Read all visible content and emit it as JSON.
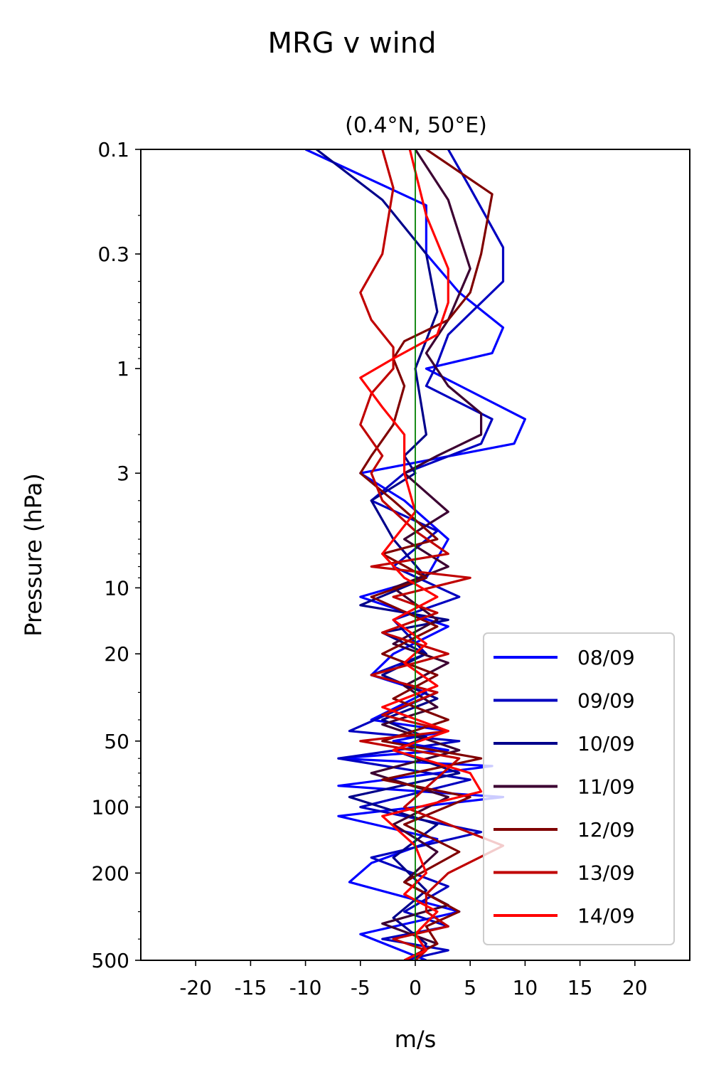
{
  "figure": {
    "suptitle": "MRG v wind",
    "subtitle": "(0.4°N, 50°E)"
  },
  "chart_data": {
    "type": "line",
    "title": "(0.4°N, 50°E)",
    "xlabel": "m/s",
    "ylabel": "Pressure (hPa)",
    "xlim": [
      -25,
      25
    ],
    "ylim": [
      500,
      0.1
    ],
    "yscale": "log",
    "x_ticks": [
      -20,
      -15,
      -10,
      -5,
      0,
      5,
      10,
      15,
      20
    ],
    "x_tick_labels": [
      "-20",
      "-15",
      "-10",
      "-5",
      "0",
      "5",
      "10",
      "15",
      "20"
    ],
    "y_ticks": [
      0.1,
      0.3,
      1,
      3,
      10,
      20,
      50,
      100,
      200,
      500
    ],
    "y_tick_labels": [
      "0.1",
      "0.3",
      "1",
      "3",
      "10",
      "20",
      "50",
      "100",
      "200",
      "500"
    ],
    "reference_line": {
      "x": 0,
      "color": "#008000"
    },
    "grid": false,
    "legend_position": "lower-right",
    "series": [
      {
        "name": "08/09",
        "color": "#0000ff",
        "x": [
          -10,
          1,
          1,
          4,
          8,
          7,
          1,
          10,
          9,
          -5,
          -1,
          3,
          1,
          -5,
          3,
          -2,
          -4,
          1,
          -4,
          3,
          -2,
          3,
          -7,
          7,
          -7,
          8,
          -7,
          2,
          -4,
          -6,
          4,
          -5,
          1
        ],
        "y": [
          0.1,
          0.18,
          0.3,
          0.45,
          0.65,
          0.85,
          1.0,
          1.7,
          2.2,
          3.0,
          4.0,
          6.0,
          9.0,
          11.0,
          15.0,
          20.0,
          25.0,
          30.0,
          40.0,
          45.0,
          50.0,
          55.0,
          60.0,
          65.0,
          80.0,
          90.0,
          110.0,
          140.0,
          180.0,
          220.0,
          300.0,
          380.0,
          500.0
        ]
      },
      {
        "name": "09/09",
        "color": "#0000c0",
        "x": [
          3,
          5,
          8,
          8,
          3,
          2,
          1,
          7,
          6,
          -1,
          -4,
          2,
          -2,
          4,
          -2,
          1,
          -4,
          2,
          -6,
          4,
          -7,
          5,
          -5,
          6,
          -4,
          3,
          -1,
          3,
          -3,
          3,
          -1
        ],
        "y": [
          0.1,
          0.15,
          0.28,
          0.4,
          0.7,
          0.95,
          1.2,
          1.7,
          2.2,
          3.0,
          4.0,
          5.5,
          8.0,
          11.0,
          14.0,
          20.0,
          25.0,
          30.0,
          45.0,
          50.0,
          60.0,
          75.0,
          100.0,
          130.0,
          170.0,
          230.0,
          300.0,
          350.0,
          400.0,
          450.0,
          500.0
        ]
      },
      {
        "name": "10/09",
        "color": "#00008b",
        "x": [
          -9,
          -3,
          1,
          2,
          0,
          1,
          -1,
          0,
          -4,
          -2,
          1,
          -5,
          3,
          -3,
          1,
          -3,
          2,
          -3,
          1,
          -2,
          4,
          -6,
          2,
          -2,
          1,
          -2,
          1,
          0
        ],
        "y": [
          0.1,
          0.17,
          0.3,
          0.55,
          1.0,
          2.0,
          2.5,
          3.0,
          4.0,
          6.0,
          9.0,
          12.0,
          14.0,
          16.0,
          20.0,
          25.0,
          32.0,
          40.0,
          48.0,
          55.0,
          70.0,
          90.0,
          120.0,
          170.0,
          240.0,
          320.0,
          420.0,
          500.0
        ]
      },
      {
        "name": "11/09",
        "color": "#3c0032",
        "x": [
          0,
          3,
          5,
          3,
          1,
          3,
          6,
          6,
          2,
          -1,
          3,
          -1,
          3,
          -2,
          2,
          -2,
          3,
          -1,
          2,
          -3,
          4,
          -4,
          3,
          -2,
          2,
          -1,
          3,
          -3,
          2,
          -1
        ],
        "y": [
          0.1,
          0.17,
          0.35,
          0.6,
          0.85,
          1.2,
          1.6,
          2.0,
          2.5,
          3.0,
          4.5,
          6.0,
          8.0,
          10.0,
          14.0,
          18.0,
          22.0,
          28.0,
          35.0,
          42.0,
          55.0,
          70.0,
          90.0,
          120.0,
          160.0,
          220.0,
          280.0,
          340.0,
          420.0,
          500.0
        ]
      },
      {
        "name": "12/09",
        "color": "#800000",
        "x": [
          1,
          7,
          6,
          5,
          3,
          -1,
          -2,
          -1,
          -2,
          -4,
          -5,
          -2,
          2,
          -3,
          1,
          -4,
          2,
          -3,
          2,
          -2,
          3,
          -3,
          6,
          -3,
          5,
          -1,
          4,
          -1,
          4,
          1,
          2,
          -1
        ],
        "y": [
          0.1,
          0.16,
          0.3,
          0.45,
          0.6,
          0.75,
          0.9,
          1.2,
          1.8,
          2.5,
          3.0,
          4.0,
          6.0,
          7.0,
          9.0,
          11.0,
          15.0,
          20.0,
          25.0,
          32.0,
          40.0,
          50.0,
          60.0,
          75.0,
          90.0,
          120.0,
          160.0,
          220.0,
          300.0,
          350.0,
          420.0,
          500.0
        ]
      },
      {
        "name": "13/09",
        "color": "#c00000",
        "x": [
          -3,
          -2,
          -3,
          -5,
          -4,
          -2,
          -2,
          -4,
          -5,
          -3,
          -4,
          -3,
          0,
          3,
          -4,
          5,
          -2,
          2,
          -3,
          3,
          -4,
          2,
          -3,
          3,
          -5,
          4,
          -1,
          8,
          3,
          1,
          1,
          3,
          -2,
          1,
          0
        ],
        "y": [
          0.1,
          0.15,
          0.3,
          0.45,
          0.6,
          0.8,
          1.0,
          1.3,
          1.8,
          2.5,
          3.0,
          4.0,
          5.5,
          7.0,
          8.0,
          9.0,
          11.0,
          13.0,
          16.0,
          20.0,
          25.0,
          30.0,
          38.0,
          45.0,
          50.0,
          60.0,
          100.0,
          150.0,
          200.0,
          250.0,
          300.0,
          350.0,
          400.0,
          450.0,
          500.0
        ]
      },
      {
        "name": "14/09",
        "color": "#ff0000",
        "x": [
          -0.5,
          1,
          3,
          3,
          2,
          -2,
          -5,
          -3,
          -1,
          -1,
          0,
          -3,
          -1,
          2,
          -2,
          1,
          -1,
          2,
          -3,
          3,
          -2,
          5,
          6,
          -3,
          0,
          1,
          -1,
          2,
          0,
          1,
          -1
        ],
        "y": [
          0.1,
          0.2,
          0.35,
          0.5,
          0.7,
          0.9,
          1.1,
          1.5,
          2.0,
          3.0,
          4.5,
          7.0,
          9.0,
          11.0,
          14.0,
          18.0,
          22.0,
          28.0,
          35.0,
          45.0,
          55.0,
          70.0,
          85.0,
          110.0,
          150.0,
          200.0,
          250.0,
          300.0,
          380.0,
          450.0,
          500.0
        ]
      }
    ]
  }
}
